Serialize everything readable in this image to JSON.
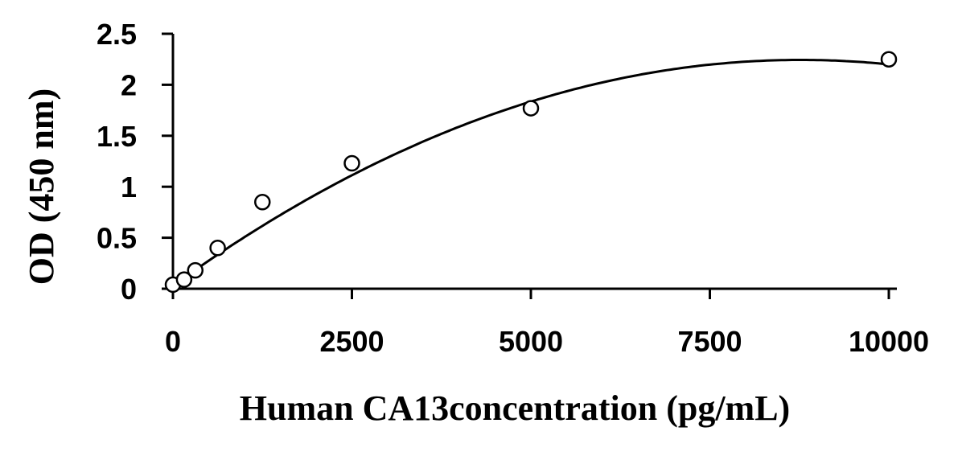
{
  "chart_data": {
    "type": "scatter",
    "title": "",
    "xlabel": "Human CA13concentration (pg/mL)",
    "ylabel": "OD (450 nm)",
    "xlim": [
      0,
      10000
    ],
    "ylim": [
      0,
      2.5
    ],
    "x_ticks": [
      0,
      2500,
      5000,
      7500,
      10000
    ],
    "x_tick_labels": [
      "0",
      "2500",
      "5000",
      "7500",
      "10000"
    ],
    "y_ticks": [
      0,
      0.5,
      1,
      1.5,
      2,
      2.5
    ],
    "y_tick_labels": [
      "0",
      "0.5",
      "1",
      "1.5",
      "2",
      "2.5"
    ],
    "grid": false,
    "legend": "none",
    "series": [
      {
        "points": [
          {
            "x": 0,
            "y": 0.04
          },
          {
            "x": 156,
            "y": 0.09
          },
          {
            "x": 312,
            "y": 0.18
          },
          {
            "x": 625,
            "y": 0.4
          },
          {
            "x": 1250,
            "y": 0.85
          },
          {
            "x": 2500,
            "y": 1.23
          },
          {
            "x": 5000,
            "y": 1.77
          },
          {
            "x": 10000,
            "y": 2.25
          }
        ],
        "trendline": {
          "type": "polynomial",
          "coefficients": [
            0.03,
            0.000505,
            -2.88e-08
          ]
        }
      }
    ],
    "colors": {
      "axis": "#000000",
      "marker": "#000000",
      "line": "#000000"
    }
  }
}
